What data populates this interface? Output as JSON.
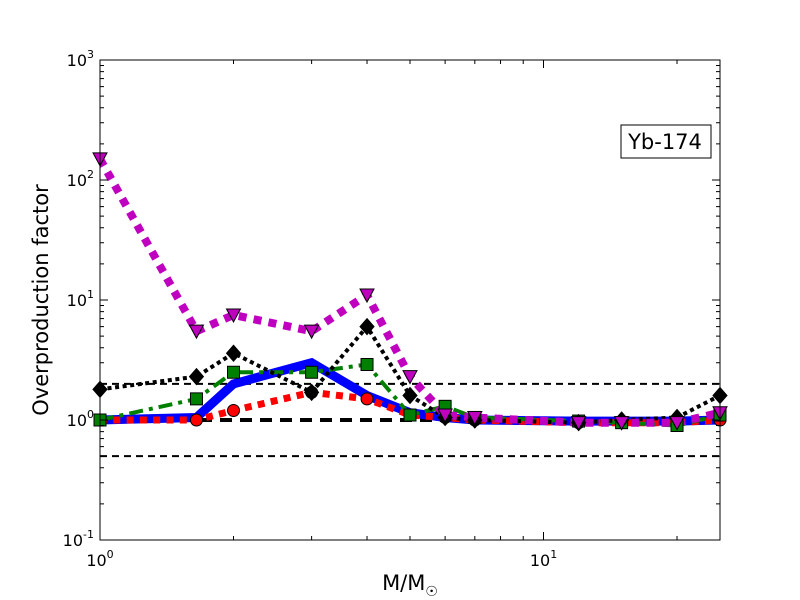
{
  "chart_data": {
    "type": "line",
    "xlabel": "M/M",
    "xlabel_subscript": "☉",
    "ylabel": "Overproduction factor",
    "xscale": "log",
    "yscale": "log",
    "xlim": [
      1,
      25
    ],
    "ylim": [
      0.1,
      1000
    ],
    "x_ticks": [
      {
        "value": 1,
        "base": "10",
        "exp": "0"
      },
      {
        "value": 10,
        "base": "10",
        "exp": "1"
      }
    ],
    "y_ticks": [
      {
        "value": 0.1,
        "base": "10",
        "exp": "-1"
      },
      {
        "value": 1,
        "base": "10",
        "exp": "0"
      },
      {
        "value": 10,
        "base": "10",
        "exp": "1"
      },
      {
        "value": 100,
        "base": "10",
        "exp": "2"
      },
      {
        "value": 1000,
        "base": "10",
        "exp": "3"
      }
    ],
    "annotation": "Yb-174",
    "reference_lines": [
      {
        "y": 0.5,
        "style": "dashed",
        "width": 2,
        "color": "#000000"
      },
      {
        "y": 1.0,
        "style": "dashed",
        "width": 4,
        "color": "#000000"
      },
      {
        "y": 2.0,
        "style": "dashed",
        "width": 2,
        "color": "#000000"
      }
    ],
    "series": [
      {
        "color": "#0000ff",
        "dash": "solid",
        "width": 9,
        "marker": "none",
        "x": [
          1,
          1.65,
          2,
          3,
          4,
          5,
          6,
          7,
          12,
          15,
          20,
          25
        ],
        "y": [
          1.0,
          1.05,
          2.0,
          3.0,
          1.6,
          1.15,
          1.05,
          1.0,
          0.98,
          0.98,
          0.98,
          1.0
        ]
      },
      {
        "color": "#ff0000",
        "dash": "dotted",
        "width": 7,
        "marker": "circle",
        "x": [
          1,
          1.65,
          2,
          3,
          4,
          5,
          6,
          7,
          12,
          15,
          20,
          25
        ],
        "y": [
          1.0,
          1.0,
          1.2,
          1.7,
          1.5,
          1.1,
          1.05,
          1.0,
          0.95,
          0.95,
          0.95,
          1.0
        ]
      },
      {
        "color": "#008000",
        "dash": "dashdot",
        "width": 4,
        "marker": "square",
        "x": [
          1,
          1.65,
          2,
          3,
          4,
          5,
          6,
          7,
          12,
          15,
          20,
          25
        ],
        "y": [
          1.0,
          1.5,
          2.5,
          2.5,
          2.9,
          1.1,
          1.3,
          1.05,
          0.98,
          0.95,
          0.9,
          1.1
        ]
      },
      {
        "color": "#000000",
        "dash": "dotted",
        "width": 4,
        "marker": "diamond",
        "x": [
          1,
          1.65,
          2,
          3,
          4,
          5,
          6,
          7,
          12,
          15,
          20,
          25
        ],
        "y": [
          1.8,
          2.3,
          3.6,
          1.7,
          6.0,
          1.6,
          1.05,
          1.0,
          0.95,
          1.0,
          1.05,
          1.6
        ]
      },
      {
        "color": "#bf00bf",
        "dash": "dotted",
        "width": 8,
        "marker": "triangle-down",
        "x": [
          1,
          1.65,
          2,
          3,
          4,
          5,
          6,
          7,
          12,
          15,
          20,
          25
        ],
        "y": [
          150,
          5.5,
          7.5,
          5.5,
          11.0,
          2.3,
          1.1,
          1.05,
          0.95,
          0.95,
          0.95,
          1.15
        ]
      }
    ]
  }
}
